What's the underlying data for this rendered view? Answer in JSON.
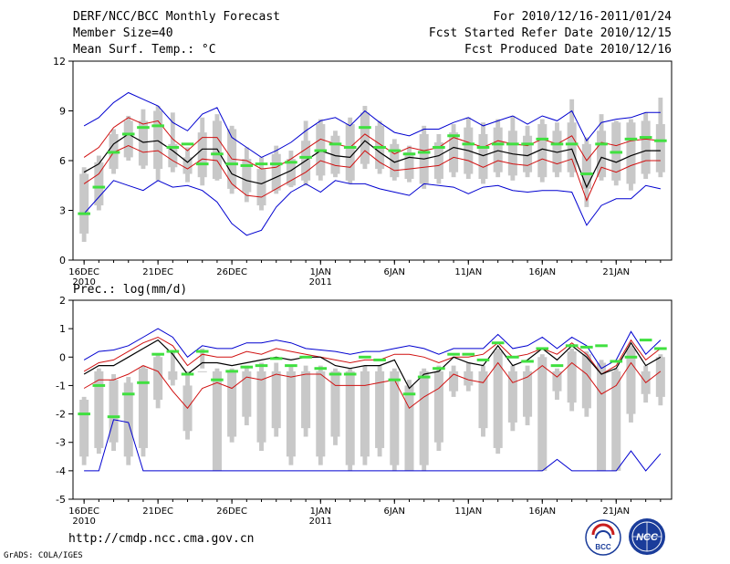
{
  "header": {
    "title": "DERF/NCC/BCC Monthly Forecast",
    "member_size": "Member Size=40",
    "variable": "Mean Surf. Temp.: °C",
    "period": "For 2010/12/16-2011/01/24",
    "started": "Fcst Started Refer Date 2010/12/15",
    "produced": "Fcst Produced Date 2010/12/16"
  },
  "footer": {
    "url": "http://cmdp.ncc.cma.gov.cn",
    "grads": "GrADS: COLA/IGES",
    "logo_bcc": "BCC",
    "logo_ncc": "NCC"
  },
  "colors": {
    "box": "#c8c8c8",
    "median": "#40e040",
    "mean": "#000000",
    "spread": "#d01010",
    "extreme": "#0000d0"
  },
  "chart_data": [
    {
      "type": "line",
      "title": "Mean Surf. Temp.: °C",
      "ylabel": "°C",
      "ylim": [
        0,
        12
      ],
      "yticks": [
        0,
        3,
        6,
        9,
        12
      ],
      "x_tick_labels": [
        "16DEC",
        "21DEC",
        "26DEC",
        "1JAN",
        "6JAN",
        "11JAN",
        "16JAN",
        "21JAN"
      ],
      "x_sub_labels": [
        "2010",
        "",
        "",
        "2011",
        "",
        "",
        "",
        ""
      ],
      "x_tick_days": [
        1,
        6,
        11,
        17,
        22,
        27,
        32,
        37
      ],
      "days": 40,
      "series": [
        {
          "name": "max",
          "values": [
            8.1,
            8.6,
            9.5,
            10.1,
            9.7,
            9.3,
            8.3,
            7.8,
            8.8,
            9.2,
            7.4,
            6.8,
            6.2,
            6.6,
            7.1,
            7.8,
            8.4,
            8.6,
            8.1,
            9.0,
            8.3,
            7.7,
            7.5,
            7.9,
            7.9,
            8.3,
            8.6,
            8.1,
            8.4,
            8.7,
            8.2,
            8.7,
            8.4,
            9.0,
            7.2,
            8.3,
            8.5,
            8.6,
            8.9,
            8.9
          ]
        },
        {
          "name": "upper",
          "values": [
            6.2,
            6.8,
            8.0,
            8.6,
            8.2,
            8.4,
            7.3,
            6.6,
            7.4,
            7.4,
            6.1,
            6.0,
            5.5,
            5.6,
            6.1,
            6.7,
            7.3,
            7.0,
            6.8,
            7.6,
            7.0,
            6.4,
            6.8,
            6.6,
            6.8,
            7.4,
            7.1,
            6.8,
            7.2,
            7.0,
            6.9,
            7.3,
            7.0,
            7.5,
            6.0,
            7.1,
            6.9,
            7.2,
            7.3,
            7.2
          ]
        },
        {
          "name": "mean",
          "values": [
            5.3,
            5.8,
            7.0,
            7.6,
            7.1,
            7.2,
            6.6,
            5.9,
            6.7,
            6.7,
            5.2,
            4.8,
            4.6,
            5.0,
            5.4,
            6.0,
            6.6,
            6.3,
            6.2,
            7.2,
            6.5,
            5.9,
            6.2,
            6.1,
            6.3,
            6.8,
            6.6,
            6.3,
            6.6,
            6.4,
            6.3,
            6.7,
            6.5,
            6.7,
            4.4,
            6.2,
            5.9,
            6.3,
            6.6,
            6.6
          ]
        },
        {
          "name": "lower",
          "values": [
            4.6,
            5.2,
            6.5,
            6.9,
            6.5,
            6.6,
            6.0,
            5.5,
            6.1,
            6.0,
            4.6,
            3.9,
            3.8,
            4.3,
            4.8,
            5.3,
            6.0,
            5.7,
            5.6,
            6.6,
            5.9,
            5.4,
            5.5,
            5.6,
            5.7,
            6.2,
            6.0,
            5.6,
            6.0,
            5.8,
            5.7,
            6.1,
            5.8,
            6.1,
            3.6,
            5.6,
            5.3,
            5.7,
            6.0,
            6.0
          ]
        },
        {
          "name": "min",
          "values": [
            2.8,
            3.8,
            4.8,
            4.5,
            4.2,
            4.8,
            4.4,
            4.5,
            4.2,
            3.5,
            2.2,
            1.5,
            1.8,
            3.2,
            4.1,
            4.6,
            4.1,
            4.8,
            4.6,
            4.6,
            4.3,
            4.1,
            3.9,
            4.6,
            4.5,
            4.4,
            4.0,
            4.4,
            4.5,
            4.2,
            4.1,
            4.2,
            4.2,
            4.1,
            2.1,
            3.3,
            3.7,
            3.7,
            4.5,
            4.3
          ]
        },
        {
          "name": "median",
          "values": [
            2.8,
            4.4,
            6.5,
            7.6,
            8.0,
            8.1,
            6.8,
            7.0,
            5.8,
            6.4,
            5.8,
            5.7,
            5.8,
            5.8,
            5.9,
            6.2,
            6.6,
            7.0,
            6.8,
            8.0,
            6.8,
            6.6,
            6.4,
            6.5,
            6.8,
            7.5,
            7.0,
            6.8,
            7.0,
            7.0,
            7.0,
            7.3,
            7.0,
            7.0,
            5.2,
            7.0,
            6.5,
            7.3,
            7.4,
            7.2
          ]
        },
        {
          "name": "box_high",
          "values": [
            5.2,
            5.9,
            7.6,
            8.4,
            8.4,
            9.0,
            7.0,
            6.2,
            7.7,
            8.4,
            7.9,
            6.1,
            5.5,
            6.4,
            6.1,
            7.2,
            8.2,
            7.5,
            8.2,
            8.9,
            8.1,
            7.0,
            6.5,
            7.6,
            7.1,
            7.7,
            8.0,
            7.6,
            8.0,
            7.8,
            7.5,
            8.2,
            7.8,
            8.3,
            7.0,
            7.8,
            8.3,
            8.3,
            8.4,
            8.2
          ]
        },
        {
          "name": "box_low",
          "values": [
            1.6,
            3.3,
            5.5,
            6.2,
            5.7,
            5.5,
            5.6,
            5.2,
            5.0,
            4.9,
            4.3,
            4.1,
            3.3,
            4.2,
            4.5,
            4.8,
            5.1,
            5.2,
            4.8,
            5.8,
            5.5,
            5.0,
            4.9,
            4.6,
            4.9,
            5.3,
            5.2,
            4.9,
            5.3,
            5.1,
            5.3,
            5.0,
            5.3,
            5.3,
            4.3,
            5.0,
            4.8,
            4.6,
            5.2,
            5.3
          ]
        },
        {
          "name": "whisker_high",
          "values": [
            5.6,
            6.3,
            7.9,
            8.7,
            9.1,
            9.3,
            8.9,
            6.8,
            8.6,
            8.8,
            8.1,
            6.8,
            6.2,
            6.9,
            6.6,
            8.4,
            8.5,
            7.8,
            8.6,
            9.3,
            8.4,
            7.3,
            6.9,
            8.1,
            7.6,
            8.2,
            8.6,
            8.3,
            8.5,
            8.7,
            8.1,
            8.5,
            8.3,
            9.7,
            7.4,
            8.8,
            8.4,
            8.5,
            8.9,
            9.8
          ]
        },
        {
          "name": "whisker_low",
          "values": [
            1.1,
            3.0,
            5.2,
            6.0,
            5.5,
            4.8,
            5.3,
            4.7,
            4.5,
            4.8,
            4.0,
            3.5,
            3.0,
            4.0,
            4.4,
            4.5,
            4.8,
            5.0,
            4.6,
            5.5,
            5.2,
            4.8,
            4.7,
            4.3,
            4.6,
            5.0,
            4.9,
            4.6,
            5.0,
            4.8,
            5.0,
            4.7,
            5.0,
            5.0,
            3.2,
            4.8,
            4.5,
            4.2,
            4.9,
            5.0
          ]
        }
      ]
    },
    {
      "type": "line",
      "title": "Prec.: log(mm/d)",
      "ylabel": "log(mm/d)",
      "ylim": [
        -5,
        2
      ],
      "yticks": [
        -5,
        -4,
        -3,
        -2,
        -1,
        0,
        1,
        2
      ],
      "x_tick_labels": [
        "16DEC",
        "21DEC",
        "26DEC",
        "1JAN",
        "6JAN",
        "11JAN",
        "16JAN",
        "21JAN"
      ],
      "x_sub_labels": [
        "2010",
        "",
        "",
        "2011",
        "",
        "",
        "",
        ""
      ],
      "x_tick_days": [
        1,
        6,
        11,
        17,
        22,
        27,
        32,
        37
      ],
      "days": 40,
      "series": [
        {
          "name": "max",
          "values": [
            -0.1,
            0.2,
            0.25,
            0.4,
            0.7,
            1.0,
            0.7,
            0.0,
            0.4,
            0.3,
            0.3,
            0.5,
            0.5,
            0.6,
            0.5,
            0.3,
            0.25,
            0.2,
            0.1,
            0.2,
            0.2,
            0.3,
            0.4,
            0.3,
            0.1,
            0.3,
            0.3,
            0.3,
            0.8,
            0.3,
            0.4,
            0.7,
            0.3,
            0.7,
            0.4,
            -0.4,
            -0.1,
            0.9,
            0.1,
            0.6
          ]
        },
        {
          "name": "upper",
          "values": [
            -0.5,
            -0.2,
            -0.1,
            0.2,
            0.5,
            0.7,
            0.4,
            -0.3,
            0.1,
            0.0,
            0.0,
            0.2,
            0.1,
            0.3,
            0.2,
            0.1,
            0.0,
            -0.1,
            -0.2,
            -0.1,
            -0.1,
            0.1,
            0.1,
            0.0,
            -0.2,
            0.0,
            0.0,
            0.1,
            0.5,
            0.0,
            0.1,
            0.3,
            0.1,
            0.5,
            0.1,
            -0.6,
            -0.3,
            0.6,
            -0.1,
            0.3
          ]
        },
        {
          "name": "mean",
          "values": [
            -0.6,
            -0.3,
            -0.3,
            0.0,
            0.3,
            0.6,
            0.1,
            -0.6,
            -0.2,
            -0.2,
            -0.3,
            -0.2,
            -0.1,
            0.0,
            -0.1,
            0.0,
            0.0,
            -0.3,
            -0.4,
            -0.3,
            -0.3,
            -0.1,
            -1.1,
            -0.6,
            -0.5,
            0.0,
            -0.2,
            -0.3,
            0.4,
            -0.3,
            -0.1,
            0.3,
            -0.1,
            0.4,
            0.0,
            -0.6,
            -0.4,
            0.5,
            -0.3,
            0.0
          ]
        },
        {
          "name": "lower",
          "values": [
            -1.1,
            -0.8,
            -0.8,
            -0.6,
            -0.3,
            -0.5,
            -1.2,
            -1.8,
            -1.1,
            -0.9,
            -1.1,
            -0.7,
            -0.8,
            -0.6,
            -0.7,
            -0.6,
            -0.6,
            -1.0,
            -1.0,
            -1.0,
            -0.9,
            -0.8,
            -1.8,
            -1.4,
            -1.1,
            -0.6,
            -0.8,
            -0.9,
            -0.2,
            -0.9,
            -0.7,
            -0.3,
            -0.7,
            -0.2,
            -0.6,
            -1.3,
            -1.0,
            -0.2,
            -0.9,
            -0.5
          ]
        },
        {
          "name": "min",
          "values": [
            -4.0,
            -4.0,
            -2.2,
            -2.3,
            -4.0,
            -4.0,
            -4.0,
            -4.0,
            -4.0,
            -4.0,
            -4.0,
            -4.0,
            -4.0,
            -4.0,
            -4.0,
            -4.0,
            -4.0,
            -4.0,
            -4.0,
            -4.0,
            -4.0,
            -4.0,
            -4.0,
            -4.0,
            -4.0,
            -4.0,
            -4.0,
            -4.0,
            -4.0,
            -4.0,
            -4.0,
            -4.0,
            -3.6,
            -4.0,
            -4.0,
            -4.0,
            -4.0,
            -3.3,
            -4.0,
            -3.4
          ]
        },
        {
          "name": "median",
          "values": [
            -2.0,
            -1.0,
            -2.1,
            -1.3,
            -0.9,
            0.1,
            0.2,
            -0.6,
            0.2,
            -0.8,
            -0.5,
            -0.35,
            -0.3,
            -0.05,
            -0.3,
            0.0,
            -0.4,
            -0.6,
            -0.6,
            0.0,
            -0.1,
            -0.8,
            -1.3,
            -0.7,
            -0.4,
            0.1,
            0.1,
            -0.1,
            0.5,
            0.0,
            -0.15,
            0.3,
            -0.3,
            0.4,
            0.35,
            0.4,
            -0.15,
            0.0,
            0.6,
            0.3
          ]
        },
        {
          "name": "box_high",
          "values": [
            -1.5,
            -0.5,
            -0.8,
            -0.9,
            -0.4,
            0.0,
            -0.5,
            -1.0,
            -0.5,
            -0.5,
            -0.5,
            -0.5,
            -0.5,
            -0.5,
            -0.5,
            -0.5,
            -0.5,
            -0.5,
            -0.5,
            -0.5,
            -0.5,
            -0.5,
            -1.0,
            -0.5,
            -0.5,
            -0.5,
            -0.5,
            -0.5,
            0.2,
            -0.5,
            -0.5,
            0.0,
            -0.5,
            0.2,
            0.1,
            -0.2,
            -0.5,
            0.3,
            -0.5,
            0.0
          ]
        },
        {
          "name": "box_low",
          "values": [
            -3.5,
            -3.2,
            -3.0,
            -3.5,
            -3.2,
            -1.5,
            -0.8,
            -2.6,
            -0.3,
            -4.0,
            -2.8,
            -2.1,
            -3.0,
            -2.5,
            -3.5,
            -2.5,
            -3.5,
            -2.8,
            -3.8,
            -3.5,
            -3.2,
            -3.8,
            -4.0,
            -3.8,
            -3.0,
            -1.2,
            -1.0,
            -2.5,
            -3.2,
            -2.3,
            -2.1,
            -4.0,
            -1.2,
            -1.6,
            -1.8,
            -4.0,
            -4.0,
            -2.0,
            -1.3,
            -1.4
          ]
        },
        {
          "name": "whisker_high",
          "values": [
            -1.4,
            -0.4,
            -0.6,
            -0.7,
            -0.3,
            0.1,
            0.2,
            -0.5,
            0.3,
            -0.4,
            -0.4,
            -0.3,
            -0.2,
            -0.2,
            -0.3,
            -0.3,
            -0.3,
            -0.4,
            -0.4,
            -0.3,
            -0.3,
            -0.4,
            -0.8,
            -0.4,
            -0.3,
            -0.3,
            -0.2,
            -0.3,
            0.3,
            -0.3,
            -0.3,
            0.1,
            -0.4,
            0.3,
            0.2,
            -0.1,
            -0.4,
            0.4,
            -0.3,
            0.1
          ]
        },
        {
          "name": "whisker_low",
          "values": [
            -3.8,
            -3.4,
            -3.3,
            -3.8,
            -3.5,
            -1.8,
            -1.0,
            -2.9,
            -0.4,
            -4.0,
            -3.0,
            -2.4,
            -3.3,
            -2.8,
            -3.8,
            -2.8,
            -3.8,
            -3.1,
            -4.0,
            -3.8,
            -3.5,
            -4.0,
            -4.0,
            -4.0,
            -3.3,
            -1.4,
            -1.2,
            -2.8,
            -3.4,
            -2.6,
            -2.4,
            -4.0,
            -1.5,
            -1.9,
            -2.1,
            -4.0,
            -4.0,
            -2.3,
            -1.6,
            -1.7
          ]
        }
      ]
    }
  ]
}
